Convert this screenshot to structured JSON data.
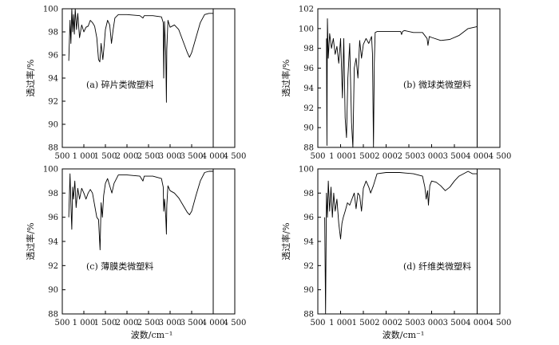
{
  "chart_data": [
    {
      "type": "line",
      "panel_label": "(a) 碎片类微塑料",
      "xlabel": "波数/cm⁻¹",
      "ylabel": "透过率/%",
      "xlim": [
        500,
        4500
      ],
      "ylim": [
        88,
        100
      ],
      "x_ticks": [
        500,
        1000,
        1500,
        2000,
        2500,
        3000,
        3500,
        4000,
        4500
      ],
      "x_tick_labels": [
        "500",
        "1 000",
        "1 500",
        "2 000",
        "2 500",
        "3 000",
        "3 500",
        "4 000",
        "4 500"
      ],
      "y_ticks": [
        88,
        90,
        92,
        94,
        96,
        98,
        100
      ],
      "y_tick_labels": [
        "88",
        "90",
        "92",
        "94",
        "96",
        "98",
        "100"
      ],
      "series": [
        {
          "x": [
            650,
            680,
            700,
            720,
            740,
            760,
            780,
            800,
            830,
            860,
            900,
            950,
            1000,
            1050,
            1100,
            1150,
            1200,
            1250,
            1300,
            1340,
            1370,
            1400,
            1440,
            1470,
            1500,
            1550,
            1600,
            1640,
            1680,
            1720,
            1800,
            2000,
            2300,
            2370,
            2400,
            2600,
            2800,
            2840,
            2852,
            2870,
            2900,
            2915,
            2925,
            2950,
            3000,
            3100,
            3200,
            3300,
            3400,
            3450,
            3500,
            3600,
            3700,
            3800,
            3900,
            4000
          ],
          "y": [
            95.5,
            99.0,
            97.0,
            100.0,
            98.0,
            99.5,
            97.8,
            100.0,
            98.2,
            99.6,
            97.5,
            98.6,
            98.0,
            98.4,
            98.5,
            99.0,
            98.8,
            98.5,
            97.5,
            95.6,
            95.4,
            97.0,
            95.6,
            96.8,
            98.2,
            99.0,
            98.6,
            97.0,
            98.2,
            99.2,
            99.5,
            99.5,
            99.4,
            99.2,
            99.4,
            99.4,
            99.3,
            98.8,
            94.0,
            98.9,
            96.0,
            91.9,
            96.5,
            99.0,
            98.4,
            98.6,
            98.2,
            97.2,
            96.2,
            95.8,
            96.2,
            97.5,
            98.8,
            99.5,
            99.6,
            99.6
          ]
        }
      ]
    },
    {
      "type": "line",
      "panel_label": "(b) 微球类微塑料",
      "xlabel": "波数/cm⁻¹",
      "ylabel": "透过率/%",
      "xlim": [
        500,
        4500
      ],
      "ylim": [
        88,
        102
      ],
      "x_ticks": [
        500,
        1000,
        1500,
        2000,
        2500,
        3000,
        3500,
        4000,
        4500
      ],
      "x_tick_labels": [
        "500",
        "1 000",
        "1 500",
        "2 000",
        "2 500",
        "3 000",
        "3 500",
        "4 000",
        "4 500"
      ],
      "y_ticks": [
        88,
        90,
        92,
        94,
        96,
        98,
        100,
        102
      ],
      "y_tick_labels": [
        "88",
        "90",
        "92",
        "94",
        "96",
        "98",
        "100",
        "102"
      ],
      "series": [
        {
          "x": [
            690,
            700,
            710,
            730,
            760,
            800,
            840,
            880,
            920,
            960,
            1000,
            1040,
            1070,
            1100,
            1130,
            1160,
            1200,
            1240,
            1270,
            1300,
            1340,
            1380,
            1420,
            1460,
            1500,
            1560,
            1620,
            1680,
            1700,
            1722,
            1740,
            1760,
            1800,
            2000,
            2200,
            2320,
            2340,
            2360,
            2400,
            2600,
            2800,
            2900,
            2920,
            2950,
            3000,
            3200,
            3400,
            3600,
            3800,
            4000
          ],
          "y": [
            99.0,
            88.2,
            101.0,
            97.0,
            99.5,
            98.0,
            99.0,
            97.4,
            98.2,
            96.5,
            99.0,
            93.0,
            99.0,
            91.0,
            89.0,
            95.0,
            98.5,
            90.5,
            88.0,
            96.0,
            97.0,
            95.0,
            98.8,
            97.0,
            98.4,
            99.0,
            98.5,
            99.2,
            97.5,
            88.0,
            96.5,
            99.6,
            99.7,
            99.7,
            99.7,
            99.7,
            99.4,
            99.7,
            99.8,
            99.6,
            99.6,
            99.0,
            98.3,
            99.2,
            99.1,
            98.8,
            98.9,
            99.3,
            100.0,
            100.2
          ]
        }
      ]
    },
    {
      "type": "line",
      "panel_label": "(c) 薄膜类微塑料",
      "xlabel": "波数/cm⁻¹",
      "ylabel": "透过率/%",
      "xlim": [
        500,
        4500
      ],
      "ylim": [
        88,
        100
      ],
      "x_ticks": [
        500,
        1000,
        1500,
        2000,
        2500,
        3000,
        3500,
        4000,
        4500
      ],
      "x_tick_labels": [
        "500",
        "1 000",
        "1 500",
        "2 000",
        "2 500",
        "3 000",
        "3 500",
        "4 000",
        "4 500"
      ],
      "y_ticks": [
        88,
        90,
        92,
        94,
        96,
        98,
        100
      ],
      "y_tick_labels": [
        "88",
        "90",
        "92",
        "94",
        "96",
        "98",
        "100"
      ],
      "series": [
        {
          "x": [
            650,
            680,
            700,
            720,
            740,
            760,
            790,
            820,
            860,
            900,
            950,
            1000,
            1050,
            1100,
            1150,
            1200,
            1250,
            1300,
            1340,
            1375,
            1400,
            1430,
            1460,
            1500,
            1550,
            1600,
            1650,
            1700,
            1800,
            2000,
            2300,
            2370,
            2400,
            2600,
            2800,
            2840,
            2852,
            2870,
            2900,
            2915,
            2925,
            2950,
            3000,
            3100,
            3200,
            3300,
            3400,
            3450,
            3500,
            3600,
            3700,
            3800,
            3900,
            4000
          ],
          "y": [
            96.0,
            99.6,
            97.0,
            95.0,
            98.5,
            97.5,
            99.0,
            96.8,
            98.4,
            97.5,
            98.4,
            98.0,
            97.5,
            98.0,
            98.3,
            98.0,
            97.0,
            96.0,
            95.8,
            93.3,
            97.2,
            96.0,
            97.8,
            98.8,
            99.2,
            98.6,
            98.0,
            98.8,
            99.5,
            99.5,
            99.4,
            99.0,
            99.4,
            99.4,
            99.2,
            98.5,
            96.5,
            97.5,
            96.0,
            94.6,
            97.0,
            98.6,
            98.2,
            98.0,
            97.6,
            97.0,
            96.4,
            96.2,
            96.5,
            97.8,
            99.0,
            99.7,
            99.8,
            99.8
          ]
        }
      ]
    },
    {
      "type": "line",
      "panel_label": "(d) 纤维类微塑料",
      "xlabel": "波数/cm⁻¹",
      "ylabel": "透过率/%",
      "xlim": [
        500,
        4500
      ],
      "ylim": [
        88,
        100
      ],
      "x_ticks": [
        500,
        1000,
        1500,
        2000,
        2500,
        3000,
        3500,
        4000,
        4500
      ],
      "x_tick_labels": [
        "500",
        "1 000",
        "1 500",
        "2 000",
        "2 500",
        "3 000",
        "3 500",
        "4 000",
        "4 500"
      ],
      "y_ticks": [
        88,
        90,
        92,
        94,
        96,
        98,
        100
      ],
      "y_tick_labels": [
        "88",
        "90",
        "92",
        "94",
        "96",
        "98",
        "100"
      ],
      "series": [
        {
          "x": [
            650,
            670,
            690,
            710,
            730,
            760,
            790,
            820,
            850,
            880,
            920,
            960,
            1000,
            1030,
            1060,
            1100,
            1150,
            1200,
            1260,
            1300,
            1340,
            1380,
            1420,
            1460,
            1500,
            1560,
            1620,
            1660,
            1720,
            1800,
            2000,
            2300,
            2600,
            2800,
            2850,
            2880,
            2910,
            2930,
            2960,
            3000,
            3100,
            3200,
            3300,
            3400,
            3500,
            3600,
            3700,
            3800,
            3900,
            4000
          ],
          "y": [
            96.0,
            88.0,
            98.0,
            96.0,
            99.0,
            96.5,
            98.5,
            96.0,
            98.0,
            96.5,
            97.5,
            95.5,
            94.2,
            95.5,
            96.0,
            96.5,
            97.2,
            97.0,
            97.6,
            98.0,
            96.7,
            98.0,
            97.8,
            96.5,
            98.4,
            99.0,
            98.5,
            98.0,
            98.6,
            99.6,
            99.7,
            99.7,
            99.6,
            99.4,
            98.5,
            97.5,
            98.2,
            97.0,
            98.6,
            99.0,
            98.9,
            98.6,
            98.2,
            98.5,
            99.0,
            99.4,
            99.6,
            99.8,
            99.6,
            99.6
          ]
        }
      ]
    }
  ]
}
